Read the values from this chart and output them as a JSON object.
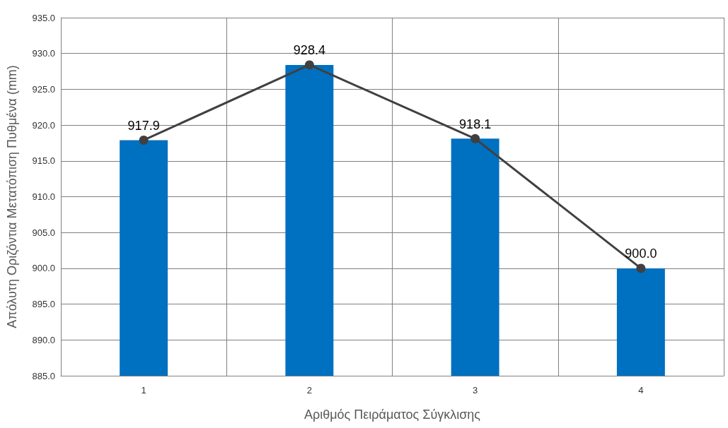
{
  "chart_data": {
    "type": "bar",
    "xlabel": "Αριθμός Πειράματος Σύγκλισης",
    "ylabel": "Απόλυτη Οριζόντια Μετατόπιση Πυθμένα (mm)",
    "categories": [
      "1",
      "2",
      "3",
      "4"
    ],
    "series": [
      {
        "color": "#0070c0",
        "values": [
          917.9,
          928.4,
          918.1,
          900.0
        ]
      },
      {
        "type": "line",
        "color": "#404040",
        "values": [
          917.9,
          928.4,
          918.1,
          900.0
        ],
        "value_labels": [
          "917.9",
          "928.4",
          "918.1",
          "900.0"
        ],
        "marker": "circle",
        "line_style": "solid"
      }
    ],
    "ylim": [
      885,
      935
    ],
    "yticks": [
      {
        "value": 885,
        "label": "885.0"
      },
      {
        "value": 890,
        "label": "890.0"
      },
      {
        "value": 895,
        "label": "895.0"
      },
      {
        "value": 900,
        "label": "900.0"
      },
      {
        "value": 905,
        "label": "905.0"
      },
      {
        "value": 910,
        "label": "910.0"
      },
      {
        "value": 915,
        "label": "915.0"
      },
      {
        "value": 920,
        "label": "920.0"
      },
      {
        "value": 925,
        "label": "925.0"
      },
      {
        "value": 930,
        "label": "930.0"
      },
      {
        "value": 935,
        "label": "935.0"
      }
    ],
    "grid": true
  }
}
